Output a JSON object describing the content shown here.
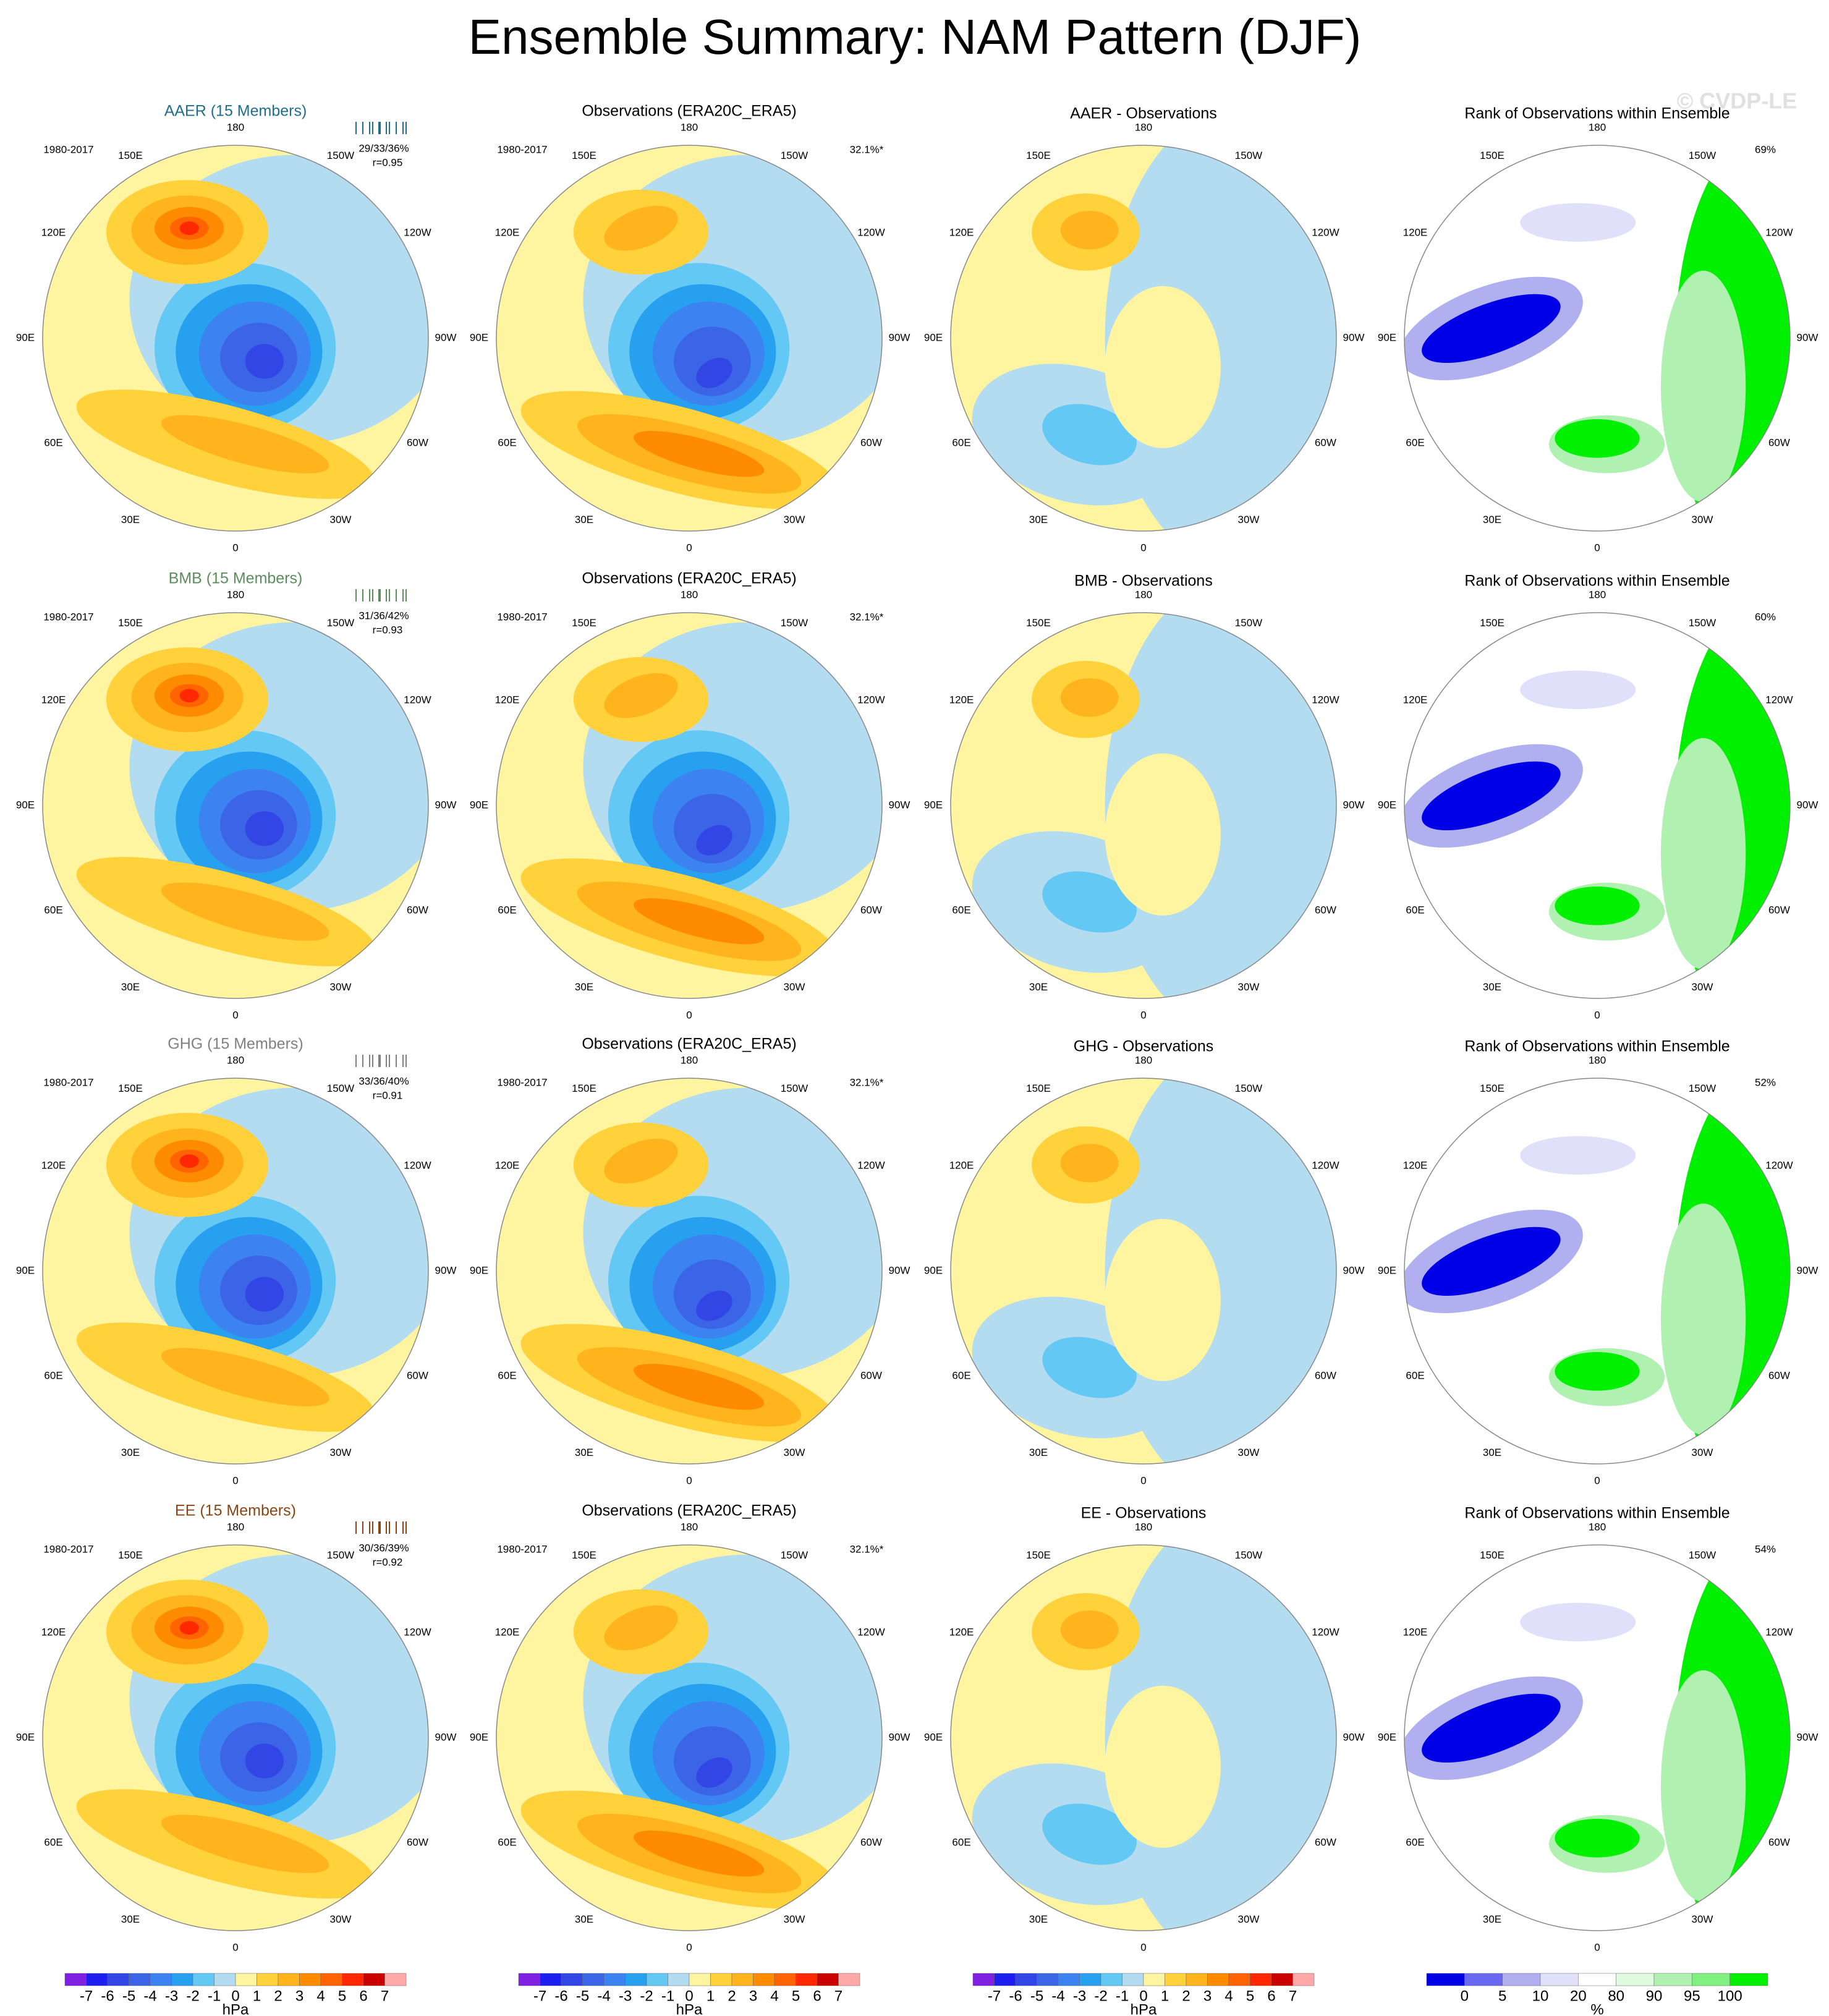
{
  "title": "Ensemble Summary: NAM Pattern (DJF)",
  "watermark": "© CVDP-LE",
  "lon_labels": [
    "180",
    "150E",
    "120E",
    "90E",
    "60E",
    "30E",
    "0",
    "30W",
    "60W",
    "90W",
    "120W",
    "150W"
  ],
  "rows": [
    {
      "model_title": "AAER (15 Members)",
      "model_color": "#1f6e8c",
      "period": "1980-2017",
      "stats": "29/33/36%",
      "r": "r=0.95",
      "obs_title": "Observations (ERA20C_ERA5)",
      "obs_period": "1980-2017",
      "obs_pct": "32.1%*",
      "diff_title": "AAER - Observations",
      "rank_title": "Rank of Observations within Ensemble",
      "rank_pct": "69%"
    },
    {
      "model_title": "BMB (15 Members)",
      "model_color": "#5e8c5e",
      "period": "1980-2017",
      "stats": "31/36/42%",
      "r": "r=0.93",
      "obs_title": "Observations (ERA20C_ERA5)",
      "obs_period": "1980-2017",
      "obs_pct": "32.1%*",
      "diff_title": "BMB - Observations",
      "rank_title": "Rank of Observations within Ensemble",
      "rank_pct": "60%"
    },
    {
      "model_title": "GHG (15 Members)",
      "model_color": "#808080",
      "period": "1980-2017",
      "stats": "33/36/40%",
      "r": "r=0.91",
      "obs_title": "Observations (ERA20C_ERA5)",
      "obs_period": "1980-2017",
      "obs_pct": "32.1%*",
      "diff_title": "GHG - Observations",
      "rank_title": "Rank of Observations within Ensemble",
      "rank_pct": "52%"
    },
    {
      "model_title": "EE (15 Members)",
      "model_color": "#8b4513",
      "period": "1980-2017",
      "stats": "30/36/39%",
      "r": "r=0.92",
      "obs_title": "Observations (ERA20C_ERA5)",
      "obs_period": "1980-2017",
      "obs_pct": "32.1%*",
      "diff_title": "EE - Observations",
      "rank_title": "Rank of Observations within Ensemble",
      "rank_pct": "54%"
    }
  ],
  "colorbar": {
    "levels": [
      -7,
      -6,
      -5,
      -4,
      -3,
      -2,
      -1,
      0,
      1,
      2,
      3,
      4,
      5,
      6,
      7
    ],
    "unit": "hPa",
    "colors": [
      "#8020e0",
      "#1e1ef0",
      "#3246e6",
      "#3c64e6",
      "#3c82f0",
      "#28a0f0",
      "#64c8f5",
      "#b4dcf0",
      "#fff5a0",
      "#ffd23c",
      "#ffb41e",
      "#ff8c00",
      "#ff6400",
      "#ff2800",
      "#c80000",
      "#ffa8a8"
    ]
  },
  "rank_colorbar": {
    "levels": [
      0,
      5,
      10,
      20,
      80,
      90,
      95,
      100
    ],
    "unit": "%",
    "colors": [
      "#0000e6",
      "#6868f0",
      "#b0b0f0",
      "#e0e0fa",
      "#ffffff",
      "#e0fae0",
      "#b0f0b0",
      "#80f080",
      "#00f000"
    ]
  }
}
